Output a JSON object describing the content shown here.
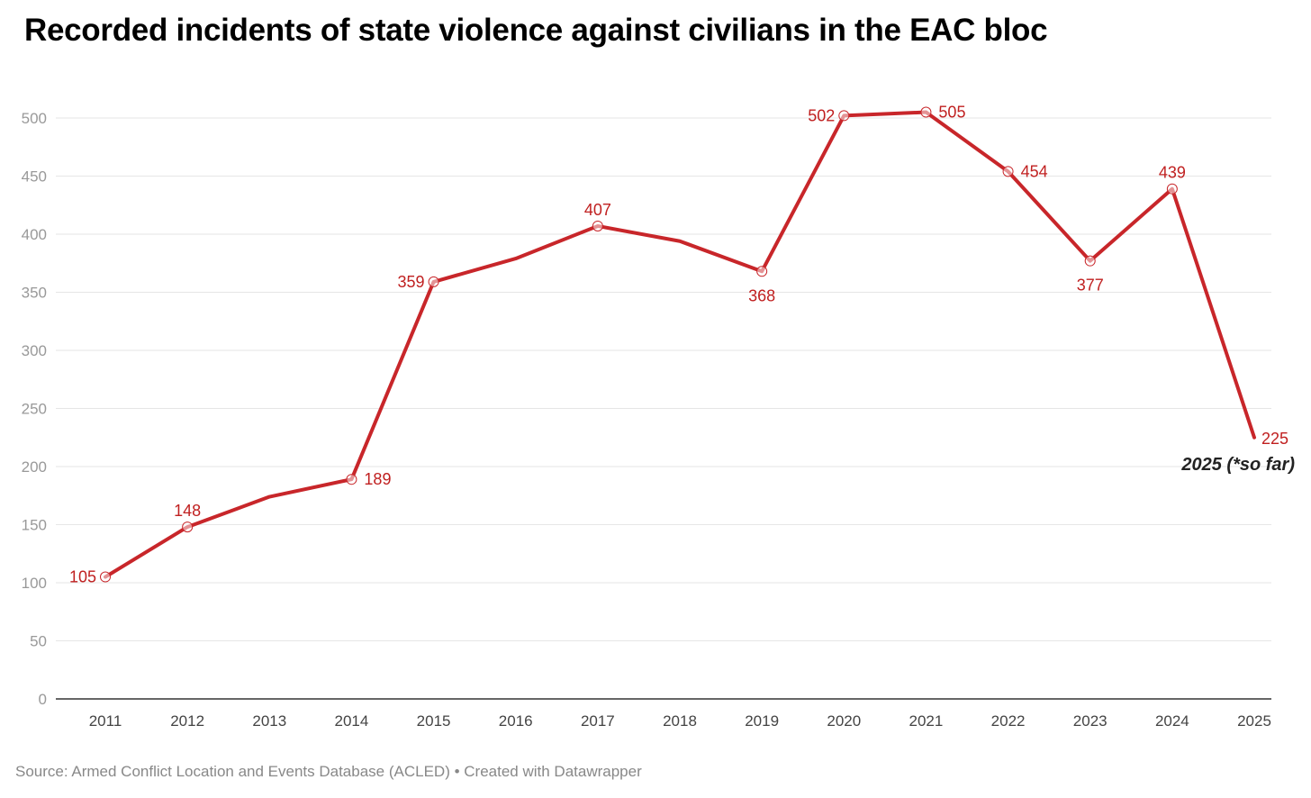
{
  "title": "Recorded incidents of state violence against civilians in the EAC bloc",
  "source": "Source: Armed Conflict Location and Events Database (ACLED) • Created with Datawrapper",
  "colors": {
    "line": "#c8262a",
    "label": "#c02020",
    "grid": "#e6e6e6",
    "axis": "#333333",
    "annotation": "#222222"
  },
  "chart_data": {
    "type": "line",
    "title": "Recorded incidents of state violence against civilians in the EAC bloc",
    "xlabel": "",
    "ylabel": "",
    "x": [
      "2011",
      "2012",
      "2013",
      "2014",
      "2015",
      "2016",
      "2017",
      "2018",
      "2019",
      "2020",
      "2021",
      "2022",
      "2023",
      "2024",
      "2025"
    ],
    "series": [
      {
        "values": [
          105,
          148,
          174,
          189,
          359,
          379,
          407,
          394,
          368,
          502,
          505,
          454,
          377,
          439,
          225
        ]
      }
    ],
    "ylim": [
      0,
      500
    ],
    "yticks": [
      0,
      50,
      100,
      150,
      200,
      250,
      300,
      350,
      400,
      450,
      500
    ],
    "grid": true,
    "legend": "none",
    "labeled_points": [
      {
        "index": 0,
        "label": "105",
        "pos": "left"
      },
      {
        "index": 1,
        "label": "148",
        "pos": "above"
      },
      {
        "index": 3,
        "label": "189",
        "pos": "right"
      },
      {
        "index": 4,
        "label": "359",
        "pos": "left"
      },
      {
        "index": 6,
        "label": "407",
        "pos": "above"
      },
      {
        "index": 8,
        "label": "368",
        "pos": "below"
      },
      {
        "index": 9,
        "label": "502",
        "pos": "left"
      },
      {
        "index": 10,
        "label": "505",
        "pos": "right"
      },
      {
        "index": 11,
        "label": "454",
        "pos": "right"
      },
      {
        "index": 12,
        "label": "377",
        "pos": "below"
      },
      {
        "index": 13,
        "label": "439",
        "pos": "above"
      },
      {
        "index": 14,
        "label": "225",
        "pos": "right"
      }
    ],
    "annotations": [
      {
        "text": "2025 (*so far)",
        "index": 14
      }
    ]
  }
}
